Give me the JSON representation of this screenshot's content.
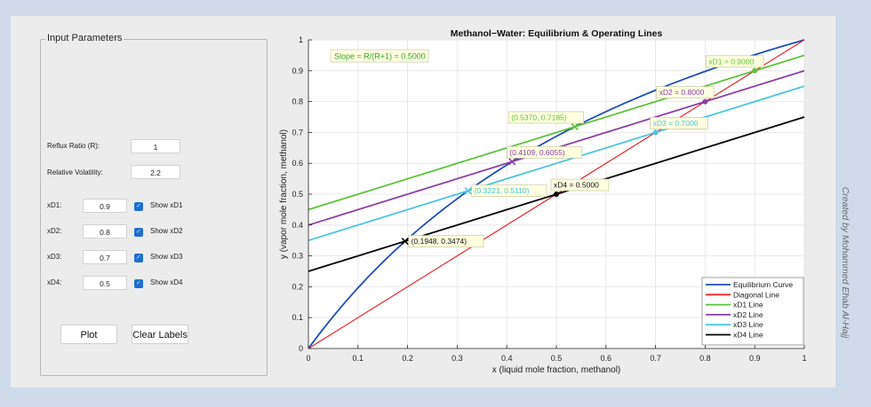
{
  "panel": {
    "title": "Input Parameters",
    "reflux_label": "Reflux Ratio (R):",
    "reflux_value": "1",
    "volatility_label": "Relative Volatility:",
    "volatility_value": "2.2",
    "rows": [
      {
        "label": "xD1:",
        "value": "0.9",
        "check_label": "Show xD1",
        "checked": true
      },
      {
        "label": "xD2:",
        "value": "0.8",
        "check_label": "Show xD2",
        "checked": true
      },
      {
        "label": "xD3:",
        "value": "0.7",
        "check_label": "Show xD3",
        "checked": true
      },
      {
        "label": "xD4:",
        "value": "0.5",
        "check_label": "Show xD4",
        "checked": true
      }
    ],
    "plot_button": "Plot",
    "clear_button": "Clear Labels"
  },
  "credit": "Created by Mohammed Ehab Al-Hajj",
  "chart_data": {
    "type": "line",
    "title": "Methanol−Water: Equilibrium & Operating Lines",
    "xlabel": "x (liquid mole fraction, methanol)",
    "ylabel": "y (vapor mole fraction, methanol)",
    "xlim": [
      0,
      1
    ],
    "ylim": [
      0,
      1
    ],
    "xticks": [
      "0",
      "0.1",
      "0.2",
      "0.3",
      "0.4",
      "0.5",
      "0.6",
      "0.7",
      "0.8",
      "0.9",
      "1"
    ],
    "yticks": [
      "0",
      "0.1",
      "0.2",
      "0.3",
      "0.4",
      "0.5",
      "0.6",
      "0.7",
      "0.8",
      "0.9",
      "1"
    ],
    "grid": true,
    "legend_position": "bottom-right",
    "reflux_ratio": 1,
    "relative_volatility": 2.2,
    "slope_annotation": "Slope = R/(R+1) = 0.5000",
    "series": [
      {
        "name": "Equilibrium Curve",
        "color": "#1f4fb4",
        "kind": "equilibrium",
        "alpha": 2.2
      },
      {
        "name": "Diagonal Line",
        "color": "#e8262a",
        "kind": "line",
        "x": [
          0,
          1
        ],
        "y": [
          0,
          1
        ]
      },
      {
        "name": "xD1 Line",
        "color": "#5ec23a",
        "kind": "operating",
        "xD": 0.9,
        "x": [
          0,
          1
        ],
        "y": [
          0.45,
          0.95
        ]
      },
      {
        "name": "xD2 Line",
        "color": "#8a3fa6",
        "kind": "operating",
        "xD": 0.8,
        "x": [
          0,
          1
        ],
        "y": [
          0.4,
          0.9
        ]
      },
      {
        "name": "xD3 Line",
        "color": "#4cc6dc",
        "kind": "operating",
        "xD": 0.7,
        "x": [
          0,
          1
        ],
        "y": [
          0.35,
          0.85
        ]
      },
      {
        "name": "xD4 Line",
        "color": "#000000",
        "kind": "operating",
        "xD": 0.5,
        "x": [
          0,
          1
        ],
        "y": [
          0.25,
          0.75
        ]
      }
    ],
    "annotations": [
      {
        "text": "xD1 = 0.9000",
        "x": 0.9,
        "y": 0.9,
        "color": "#5ec23a",
        "marker": "dot",
        "anchor": "above-left"
      },
      {
        "text": "xD2 = 0.8000",
        "x": 0.8,
        "y": 0.8,
        "color": "#8a3fa6",
        "marker": "dot",
        "anchor": "above-left"
      },
      {
        "text": "xD3 = 0.7000",
        "x": 0.7,
        "y": 0.7,
        "color": "#4cc6dc",
        "marker": "dot",
        "anchor": "above-right"
      },
      {
        "text": "xD4 = 0.5000",
        "x": 0.5,
        "y": 0.5,
        "color": "#000000",
        "marker": "dot",
        "anchor": "above-right"
      },
      {
        "text": "(0.5370, 0.7185)",
        "x": 0.537,
        "y": 0.7185,
        "color": "#5ec23a",
        "marker": "x",
        "anchor": "above-left"
      },
      {
        "text": "(0.4109, 0.6055)",
        "x": 0.4109,
        "y": 0.6055,
        "color": "#8a3fa6",
        "marker": "x",
        "anchor": "above-right"
      },
      {
        "text": "(0.3221, 0.5110)",
        "x": 0.3221,
        "y": 0.511,
        "color": "#4cc6dc",
        "marker": "x",
        "anchor": "right"
      },
      {
        "text": "(0.1948, 0.3474)",
        "x": 0.1948,
        "y": 0.3474,
        "color": "#000000",
        "marker": "x",
        "anchor": "right"
      }
    ]
  }
}
